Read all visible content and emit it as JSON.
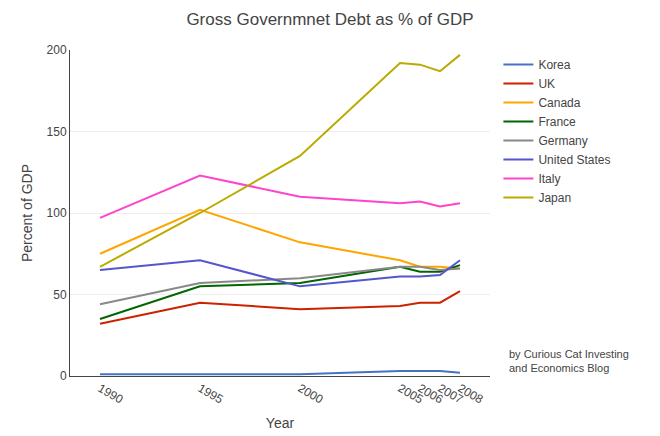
{
  "chart_data": {
    "type": "line",
    "title": "Gross Governmnet Debt as % of GDP",
    "xlabel": "Year",
    "ylabel": "Percent of GDP",
    "annotation": "by Curious Cat Investing\nand Economics Blog",
    "x": [
      1990,
      1995,
      2000,
      2005,
      2006,
      2007,
      2008
    ],
    "series": [
      {
        "name": "Korea",
        "color": "#4472C4",
        "values": [
          1,
          1,
          1,
          3,
          3,
          3,
          2
        ]
      },
      {
        "name": "UK",
        "color": "#CC2200",
        "values": [
          32,
          45,
          41,
          43,
          45,
          45,
          52
        ]
      },
      {
        "name": "Canada",
        "color": "#FFA500",
        "values": [
          75,
          102,
          82,
          71,
          67,
          67,
          66
        ]
      },
      {
        "name": "France",
        "color": "#006600",
        "values": [
          35,
          55,
          57,
          67,
          64,
          64,
          68
        ]
      },
      {
        "name": "Germany",
        "color": "#888888",
        "values": [
          44,
          57,
          60,
          67,
          67,
          65,
          66
        ]
      },
      {
        "name": "United States",
        "color": "#5555CC",
        "values": [
          65,
          71,
          55,
          61,
          61,
          62,
          71
        ]
      },
      {
        "name": "Italy",
        "color": "#FF44CC",
        "values": [
          97,
          123,
          110,
          106,
          107,
          104,
          106
        ]
      },
      {
        "name": "Japan",
        "color": "#BBAA00",
        "values": [
          67,
          100,
          135,
          192,
          191,
          187,
          197
        ]
      }
    ],
    "xlim": [
      1988.5,
      2009.5
    ],
    "xticks": [
      1990,
      1995,
      2000,
      2005,
      2006,
      2007,
      2008
    ],
    "ylim": [
      0,
      200
    ],
    "yticks": [
      0,
      50,
      100,
      150,
      200
    ],
    "grid": "y",
    "legend": "right"
  }
}
